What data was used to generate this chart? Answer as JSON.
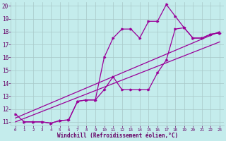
{
  "xlabel": "Windchill (Refroidissement éolien,°C)",
  "bg_color": "#c4ecec",
  "grid_color": "#a8c8c8",
  "line_color": "#990099",
  "text_color": "#660066",
  "xlim": [
    -0.5,
    23.5
  ],
  "ylim": [
    10.7,
    20.3
  ],
  "yticks": [
    11,
    12,
    13,
    14,
    15,
    16,
    17,
    18,
    19,
    20
  ],
  "xticks": [
    0,
    1,
    2,
    3,
    4,
    5,
    6,
    7,
    8,
    9,
    10,
    11,
    12,
    13,
    14,
    15,
    16,
    17,
    18,
    19,
    20,
    21,
    22,
    23
  ],
  "line1_x": [
    0,
    1,
    2,
    3,
    4,
    5,
    6,
    7,
    8,
    9,
    10,
    11,
    12,
    13,
    14,
    15,
    16,
    17,
    18,
    19,
    20,
    21,
    22,
    23
  ],
  "line1_y": [
    11.6,
    11.0,
    11.0,
    11.0,
    10.9,
    11.1,
    11.15,
    12.6,
    12.7,
    12.7,
    16.0,
    17.5,
    18.2,
    18.2,
    17.5,
    18.8,
    18.8,
    20.1,
    19.2,
    18.3,
    17.5,
    17.5,
    17.8,
    17.9
  ],
  "line2_x": [
    1,
    2,
    3,
    4,
    5,
    6,
    7,
    8,
    9,
    10,
    11,
    12,
    13,
    14,
    15,
    16,
    17,
    18,
    19,
    20,
    21,
    22,
    23
  ],
  "line2_y": [
    11.0,
    11.0,
    11.0,
    10.9,
    11.1,
    11.15,
    12.6,
    12.7,
    12.7,
    13.5,
    14.5,
    13.5,
    13.5,
    13.5,
    13.5,
    14.8,
    15.8,
    18.2,
    18.3,
    17.5,
    17.5,
    17.8,
    17.9
  ],
  "line3_x": [
    0,
    23
  ],
  "line3_y": [
    11.3,
    18.0
  ],
  "line4_x": [
    0,
    23
  ],
  "line4_y": [
    11.0,
    17.2
  ]
}
